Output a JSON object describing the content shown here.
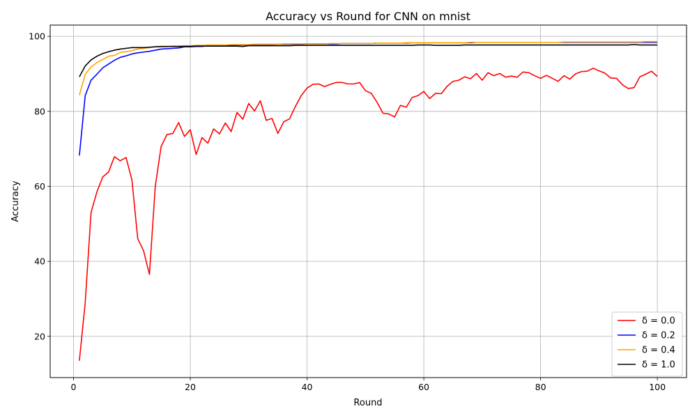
{
  "chart_data": {
    "type": "line",
    "title": "Accuracy vs Round for CNN on mnist",
    "xlabel": "Round",
    "ylabel": "Accuracy",
    "xlim": [
      -4,
      105
    ],
    "ylim": [
      9,
      103
    ],
    "xticks": [
      0,
      20,
      40,
      60,
      80,
      100
    ],
    "yticks": [
      20,
      40,
      60,
      80,
      100
    ],
    "grid": true,
    "legend_position": "bottom-right",
    "x": [
      1,
      2,
      3,
      4,
      5,
      6,
      7,
      8,
      9,
      10,
      11,
      12,
      13,
      14,
      15,
      16,
      17,
      18,
      19,
      20,
      21,
      22,
      23,
      24,
      25,
      26,
      27,
      28,
      29,
      30,
      31,
      32,
      33,
      34,
      35,
      36,
      37,
      38,
      39,
      40,
      41,
      42,
      43,
      44,
      45,
      46,
      47,
      48,
      49,
      50,
      51,
      52,
      53,
      54,
      55,
      56,
      57,
      58,
      59,
      60,
      61,
      62,
      63,
      64,
      65,
      66,
      67,
      68,
      69,
      70,
      71,
      72,
      73,
      74,
      75,
      76,
      77,
      78,
      79,
      80,
      81,
      82,
      83,
      84,
      85,
      86,
      87,
      88,
      89,
      90,
      91,
      92,
      93,
      94,
      95,
      96,
      97,
      98,
      99,
      100
    ],
    "series": [
      {
        "name": "δ = 0.0",
        "color": "#ff0000",
        "values": [
          13.5,
          29.0,
          53.0,
          58.5,
          62.5,
          63.8,
          67.9,
          66.8,
          67.7,
          61.7,
          46.0,
          42.8,
          36.5,
          60.0,
          70.6,
          73.8,
          74.1,
          77.0,
          73.3,
          75.1,
          68.5,
          73.0,
          71.5,
          75.3,
          74.0,
          76.9,
          74.6,
          79.7,
          77.9,
          82.1,
          80.1,
          82.8,
          77.6,
          78.1,
          74.1,
          77.2,
          78.0,
          81.3,
          84.2,
          86.2,
          87.2,
          87.3,
          86.6,
          87.2,
          87.7,
          87.7,
          87.3,
          87.3,
          87.7,
          85.5,
          84.8,
          82.4,
          79.5,
          79.3,
          78.5,
          81.6,
          81.1,
          83.7,
          84.2,
          85.3,
          83.4,
          84.8,
          84.7,
          86.7,
          88.0,
          88.3,
          89.2,
          88.7,
          90.1,
          88.3,
          90.3,
          89.5,
          90.1,
          89.1,
          89.4,
          89.1,
          90.5,
          90.3,
          89.5,
          88.8,
          89.6,
          88.8,
          88.0,
          89.5,
          88.6,
          90.0,
          90.6,
          90.7,
          91.5,
          90.8,
          90.2,
          88.9,
          88.8,
          87.1,
          86.1,
          86.3,
          89.2,
          89.9,
          90.7,
          89.3
        ]
      },
      {
        "name": "δ = 0.2",
        "color": "#0000ff",
        "values": [
          68.2,
          84.2,
          88.3,
          89.9,
          91.6,
          92.6,
          93.6,
          94.4,
          94.8,
          95.3,
          95.6,
          95.8,
          96.0,
          96.3,
          96.6,
          96.7,
          96.8,
          96.9,
          97.2,
          97.2,
          97.3,
          97.3,
          97.5,
          97.5,
          97.5,
          97.6,
          97.6,
          97.7,
          97.7,
          97.7,
          97.8,
          97.8,
          97.8,
          97.8,
          97.9,
          97.9,
          97.9,
          97.9,
          97.9,
          98.0,
          98.0,
          98.0,
          98.0,
          98.0,
          98.0,
          98.1,
          98.1,
          98.1,
          98.1,
          98.1,
          98.1,
          98.2,
          98.2,
          98.2,
          98.2,
          98.2,
          98.2,
          98.3,
          98.3,
          98.3,
          98.3,
          98.3,
          98.3,
          98.3,
          98.3,
          98.3,
          98.3,
          98.3,
          98.4,
          98.4,
          98.4,
          98.4,
          98.4,
          98.4,
          98.4,
          98.4,
          98.4,
          98.4,
          98.4,
          98.4,
          98.4,
          98.4,
          98.4,
          98.4,
          98.4,
          98.4,
          98.4,
          98.4,
          98.4,
          98.4,
          98.4,
          98.4,
          98.4,
          98.4,
          98.4,
          98.4,
          98.4,
          98.4,
          98.4,
          98.4
        ]
      },
      {
        "name": "δ = 0.4",
        "color": "#ffa500",
        "values": [
          84.3,
          89.9,
          91.8,
          93.0,
          93.8,
          94.7,
          94.9,
          95.7,
          95.9,
          96.2,
          96.6,
          96.8,
          97.0,
          97.2,
          97.2,
          97.2,
          97.4,
          97.4,
          97.5,
          97.5,
          97.6,
          97.6,
          97.7,
          97.7,
          97.7,
          97.7,
          97.8,
          97.8,
          97.8,
          97.8,
          97.9,
          97.9,
          97.9,
          97.9,
          97.9,
          98.0,
          98.0,
          98.0,
          98.0,
          98.0,
          98.0,
          98.0,
          98.0,
          98.1,
          98.1,
          98.1,
          98.1,
          98.1,
          98.1,
          98.1,
          98.1,
          98.2,
          98.2,
          98.2,
          98.2,
          98.2,
          98.3,
          98.3,
          98.3,
          98.3,
          98.3,
          98.3,
          98.3,
          98.3,
          98.3,
          98.3,
          98.3,
          98.4,
          98.4,
          98.4,
          98.4,
          98.4,
          98.4,
          98.4,
          98.4,
          98.4,
          98.4,
          98.4,
          98.4,
          98.4,
          98.4,
          98.4,
          98.4,
          98.5,
          98.5,
          98.5,
          98.5,
          98.5,
          98.5,
          98.5,
          98.5,
          98.5,
          98.5,
          98.5,
          98.5,
          98.5,
          98.5,
          98.6,
          98.6,
          98.6
        ]
      },
      {
        "name": "δ = 1.0",
        "color": "#000000",
        "values": [
          89.2,
          92.1,
          93.7,
          94.7,
          95.4,
          95.9,
          96.3,
          96.6,
          96.8,
          97.0,
          97.0,
          97.0,
          97.1,
          97.2,
          97.3,
          97.3,
          97.3,
          97.3,
          97.3,
          97.3,
          97.4,
          97.4,
          97.4,
          97.4,
          97.4,
          97.4,
          97.4,
          97.4,
          97.3,
          97.5,
          97.5,
          97.5,
          97.5,
          97.5,
          97.5,
          97.5,
          97.5,
          97.6,
          97.6,
          97.6,
          97.6,
          97.6,
          97.6,
          97.6,
          97.6,
          97.6,
          97.6,
          97.6,
          97.6,
          97.6,
          97.6,
          97.6,
          97.6,
          97.6,
          97.6,
          97.6,
          97.6,
          97.6,
          97.7,
          97.7,
          97.7,
          97.6,
          97.6,
          97.6,
          97.6,
          97.6,
          97.7,
          97.7,
          97.7,
          97.7,
          97.7,
          97.7,
          97.7,
          97.7,
          97.7,
          97.7,
          97.7,
          97.7,
          97.7,
          97.7,
          97.7,
          97.7,
          97.7,
          97.7,
          97.7,
          97.7,
          97.7,
          97.7,
          97.7,
          97.7,
          97.7,
          97.7,
          97.7,
          97.7,
          97.7,
          97.8,
          97.7,
          97.7,
          97.7,
          97.7
        ]
      }
    ]
  }
}
